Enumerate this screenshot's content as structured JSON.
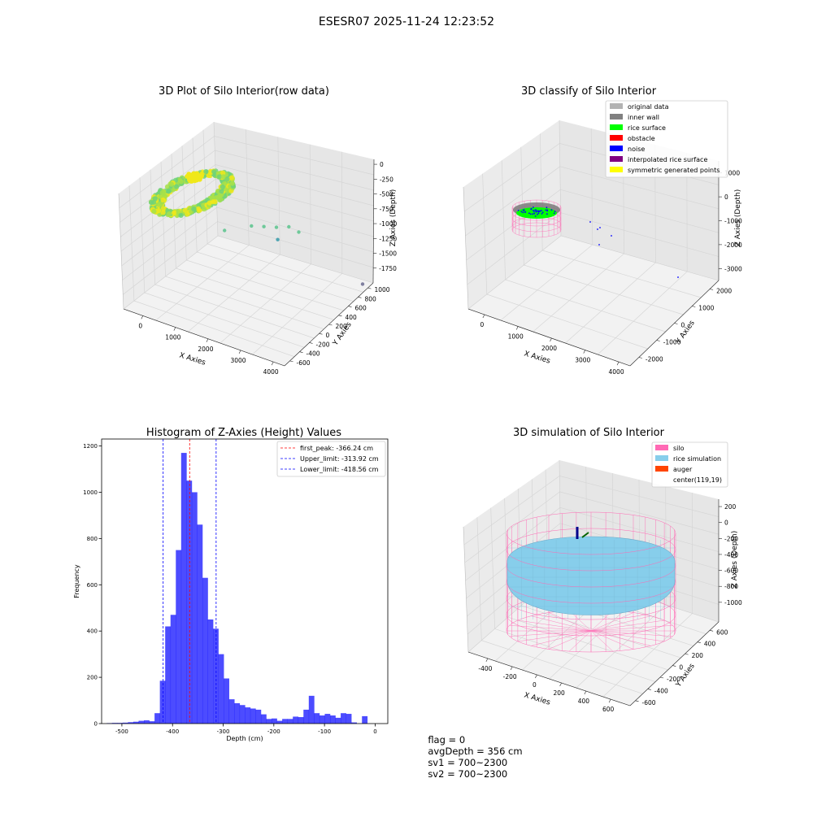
{
  "suptitle": "ESESR07 2025-11-24 12:23:52",
  "status": {
    "flag": "flag = 0",
    "avg_depth": "avgDepth = 356 cm",
    "sv1": "sv1 = 700~2300",
    "sv2": "sv2 = 700~2300"
  },
  "chart_data": [
    {
      "type": "scatter",
      "title": "3D Plot of Silo Interior(row data)",
      "xlabel": "X Axies",
      "ylabel": "Y Axies",
      "zlabel": "Z Axies (Depth)",
      "x_ticks": [
        "0",
        "1000",
        "2000",
        "3000",
        "4000"
      ],
      "y_ticks": [
        "-600",
        "-400",
        "-200",
        "0",
        "200",
        "400",
        "600",
        "800",
        "1000"
      ],
      "z_ticks": [
        "0",
        "-250",
        "-500",
        "-750",
        "-1000",
        "-1250",
        "-1500",
        "-1750"
      ],
      "xlim": [
        -400,
        4200
      ],
      "ylim": [
        -700,
        1050
      ],
      "zlim": [
        -1900,
        0
      ],
      "colormap": [
        "#4fb5c2",
        "#6fd27a",
        "#a7e04a",
        "#f0e81a"
      ],
      "outliers": [
        {
          "x": 1900,
          "y": 600,
          "z": -450
        },
        {
          "x": 2200,
          "y": 300,
          "z": -520
        },
        {
          "x": 2400,
          "y": 200,
          "z": -560
        },
        {
          "x": 2600,
          "y": 100,
          "z": -600
        },
        {
          "x": 2800,
          "y": 0,
          "z": -620
        },
        {
          "x": 3000,
          "y": -50,
          "z": -700
        },
        {
          "x": 2300,
          "y": -100,
          "z": -1000
        },
        {
          "x": 3900,
          "y": -600,
          "z": -1750
        }
      ]
    },
    {
      "type": "scatter",
      "title": "3D classify of Silo Interior",
      "xlabel": "X Axies",
      "ylabel": "Y Axies",
      "zlabel": "Z Axies (Depth)",
      "x_ticks": [
        "0",
        "1000",
        "2000",
        "3000",
        "4000"
      ],
      "y_ticks": [
        "-2000",
        "-1000",
        "0",
        "1000",
        "2000"
      ],
      "z_ticks": [
        "1000",
        "0",
        "-1000",
        "-2000",
        "-3000"
      ],
      "legend_position": "top-right",
      "legend": [
        {
          "label": "original data",
          "color": "#b3b3b3"
        },
        {
          "label": "inner wall",
          "color": "#808080"
        },
        {
          "label": "rice surface",
          "color": "#00ff00"
        },
        {
          "label": "obstacle",
          "color": "#ff0000"
        },
        {
          "label": "noise",
          "color": "#0000ff"
        },
        {
          "label": "interpolated rice surface",
          "color": "#800080"
        },
        {
          "label": "symmetric generated points",
          "color": "#ffff00"
        }
      ]
    },
    {
      "type": "bar",
      "title": "Histogram of Z-Axies (Height) Values",
      "xlabel": "Depth (cm)",
      "ylabel": "Frequency",
      "xlim": [
        -540,
        25
      ],
      "ylim": [
        0,
        1230
      ],
      "x_ticks": [
        -500,
        -400,
        -300,
        -200,
        -100,
        0
      ],
      "y_ticks": [
        0,
        200,
        400,
        600,
        800,
        1000,
        1200
      ],
      "bar_color": "#0000ff",
      "bin_start": -530,
      "bin_width": 10.5,
      "values": [
        2,
        3,
        3,
        4,
        6,
        8,
        12,
        14,
        10,
        45,
        185,
        420,
        470,
        750,
        1170,
        1050,
        1000,
        860,
        630,
        450,
        410,
        300,
        195,
        105,
        88,
        80,
        70,
        65,
        60,
        40,
        20,
        22,
        12,
        20,
        20,
        30,
        28,
        60,
        120,
        45,
        35,
        42,
        35,
        25,
        45,
        42,
        5,
        0,
        32
      ],
      "legend_position": "top-right",
      "lines": [
        {
          "label": "first_peak: -366.24 cm",
          "x": -366.24,
          "color": "#ff0000"
        },
        {
          "label": "Upper_limit: -313.92 cm",
          "x": -313.92,
          "color": "#0000ff"
        },
        {
          "label": "Lower_limit: -418.56 cm",
          "x": -418.56,
          "color": "#0000ff"
        }
      ]
    },
    {
      "type": "scatter",
      "title": "3D simulation of Silo Interior",
      "xlabel": "X Axies",
      "ylabel": "Y Axies",
      "zlabel": "Z Axies (Depth)",
      "x_ticks": [
        "-400",
        "-200",
        "0",
        "200",
        "400",
        "600"
      ],
      "y_ticks": [
        "-600",
        "-400",
        "-200",
        "0",
        "200",
        "400",
        "600"
      ],
      "z_ticks": [
        "200",
        "0",
        "-200",
        "-400",
        "-600",
        "-800",
        "-1000"
      ],
      "legend_position": "top-right",
      "legend": [
        {
          "label": "silo",
          "color": "#ff69b4"
        },
        {
          "label": "rice simulation",
          "color": "#87ceeb"
        },
        {
          "label": "auger",
          "color": "#ff4500"
        },
        {
          "label": "center(119,19)",
          "color": ""
        }
      ]
    }
  ]
}
